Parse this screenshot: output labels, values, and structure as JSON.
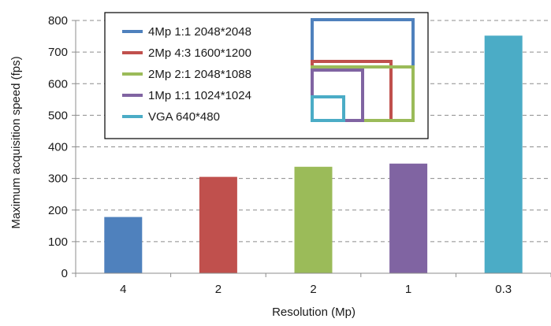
{
  "chart_data": {
    "type": "bar",
    "title": "",
    "xlabel": "Resolution (Mp)",
    "ylabel": "Maximum acquisition speed (fps)",
    "ylim": [
      0,
      800
    ],
    "yticks": [
      0,
      100,
      200,
      300,
      400,
      500,
      600,
      700,
      800
    ],
    "grid": "dashed horizontal",
    "legend_position": "top-left",
    "categories": [
      "4",
      "2",
      "2",
      "1",
      "0.3"
    ],
    "values": [
      178,
      305,
      337,
      347,
      752
    ],
    "colors": [
      "#4f81bd",
      "#c0504d",
      "#9bbb59",
      "#8064a2",
      "#4bacc6"
    ],
    "legend": [
      {
        "label": "4Mp 1:1 2048*2048",
        "color": "#4f81bd"
      },
      {
        "label": "2Mp 4:3 1600*1200",
        "color": "#c0504d"
      },
      {
        "label": "2Mp 2:1 2048*1088",
        "color": "#9bbb59"
      },
      {
        "label": "1Mp 1:1 1024*1024",
        "color": "#8064a2"
      },
      {
        "label": "VGA 640*480",
        "color": "#4bacc6"
      }
    ],
    "sensor_sizes": [
      {
        "name": "2048*2048",
        "w": 2048,
        "h": 2048,
        "color": "#4f81bd"
      },
      {
        "name": "1600*1200",
        "w": 1600,
        "h": 1200,
        "color": "#c0504d"
      },
      {
        "name": "2048*1088",
        "w": 2048,
        "h": 1088,
        "color": "#9bbb59"
      },
      {
        "name": "1024*1024",
        "w": 1024,
        "h": 1024,
        "color": "#8064a2"
      },
      {
        "name": "640*480",
        "w": 640,
        "h": 480,
        "color": "#4bacc6"
      }
    ]
  }
}
